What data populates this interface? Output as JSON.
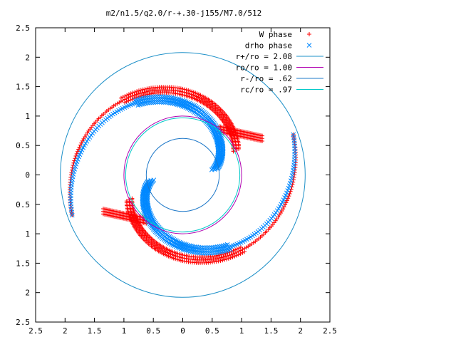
{
  "chart_data": {
    "type": "scatter",
    "title": "m2/n1.5/q2.0/r-+.30-j155/M7.0/512",
    "xlim": [
      -2.5,
      2.5
    ],
    "ylim": [
      -2.5,
      2.5
    ],
    "xticks": [
      -2.5,
      -2,
      -1.5,
      -1,
      -0.5,
      0,
      0.5,
      1,
      1.5,
      2,
      2.5
    ],
    "yticks": [
      -2.5,
      -2,
      -1.5,
      -1,
      -0.5,
      0,
      0.5,
      1,
      1.5,
      2,
      2.5
    ],
    "xtick_labels": [
      "2.5",
      "2",
      "1.5",
      "1",
      "0.5",
      "0",
      "0.5",
      "1",
      "1.5",
      "2",
      "2.5"
    ],
    "ytick_labels": [
      "2.5",
      "2",
      "1.5",
      "1",
      "0.5",
      "0",
      "0.5",
      "1",
      "1.5",
      "2",
      "2.5"
    ],
    "grid": false,
    "legend_position": "top-right",
    "series": [
      {
        "name": "W phase",
        "kind": "points",
        "marker": "plus",
        "color": "#ff0000",
        "arms": [
          {
            "r_in": 1.0,
            "theta_in": -155,
            "r_out": 2.0,
            "theta_out": 20,
            "thickness": 0.1
          },
          {
            "r_in": 1.0,
            "theta_in": 25,
            "r_out": 2.0,
            "theta_out": 200,
            "thickness": 0.1
          }
        ],
        "tips": [
          {
            "from": [
              0.62,
              0.78
            ],
            "to": [
              1.35,
              0.62
            ],
            "thickness": 0.09
          },
          {
            "from": [
              -0.62,
              -0.78
            ],
            "to": [
              -1.35,
              -0.62
            ],
            "thickness": 0.09
          }
        ]
      },
      {
        "name": "drho phase",
        "kind": "points",
        "marker": "cross",
        "color": "#0088ff",
        "arms": [
          {
            "r_in": 0.55,
            "theta_in": -170,
            "r_out": 2.0,
            "theta_out": 20,
            "thickness": 0.1
          },
          {
            "r_in": 0.55,
            "theta_in": 10,
            "r_out": 2.0,
            "theta_out": 200,
            "thickness": 0.1
          }
        ]
      },
      {
        "name": "r+/ro = 2.08",
        "kind": "circle",
        "radius": 2.08,
        "color": "#1e90c8"
      },
      {
        "name": "ro/ro = 1.00",
        "kind": "circle",
        "radius": 1.0,
        "color": "#b000b0"
      },
      {
        "name": "r-/ro = .62",
        "kind": "circle",
        "radius": 0.62,
        "color": "#1e78c8"
      },
      {
        "name": "rc/ro = .97",
        "kind": "circle",
        "radius": 0.97,
        "color": "#00c8c8"
      }
    ]
  }
}
